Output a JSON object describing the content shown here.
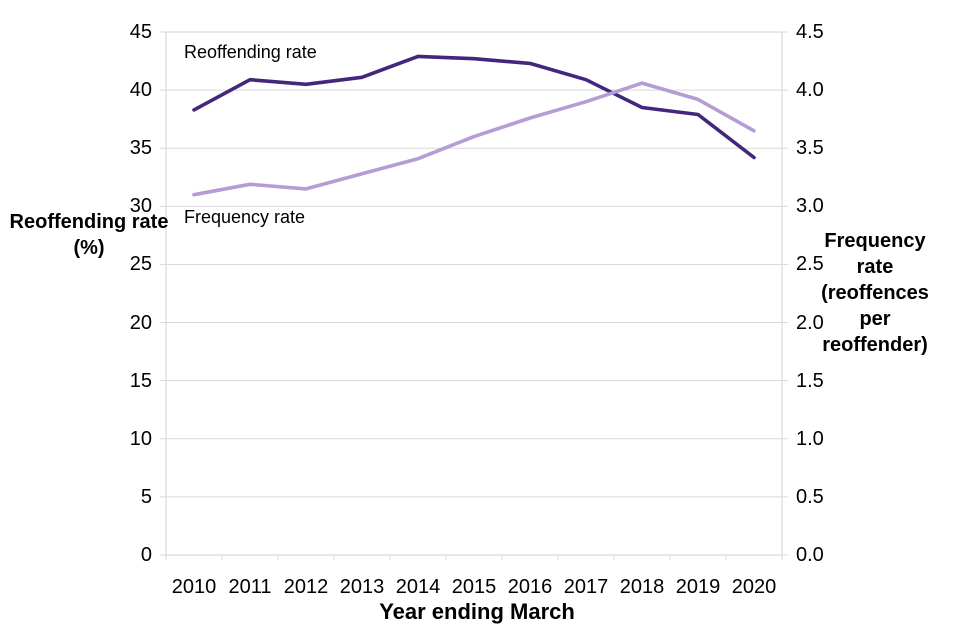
{
  "chart_data": {
    "type": "line",
    "title": "",
    "x_axis": {
      "title": "Year ending March",
      "categories": [
        "2010",
        "2011",
        "2012",
        "2013",
        "2014",
        "2015",
        "2016",
        "2017",
        "2018",
        "2019",
        "2020"
      ]
    },
    "left_axis": {
      "title": "Reoffending rate (%)",
      "min": 0,
      "max": 45,
      "tick_step": 5,
      "tick_labels": [
        "45",
        "40",
        "35",
        "30",
        "25",
        "20",
        "15",
        "10",
        "5",
        "0"
      ]
    },
    "right_axis": {
      "title": "Frequency rate (reoffences per reoffender)",
      "min": 0,
      "max": 4.5,
      "tick_step": 0.5,
      "tick_labels": [
        "4.5",
        "4.0",
        "3.5",
        "3.0",
        "2.5",
        "2.0",
        "1.5",
        "1.0",
        "0.5",
        "0.0"
      ]
    },
    "grid": "horizontal",
    "legend": "inline-labels",
    "series": [
      {
        "name": "Reoffending rate",
        "axis": "left",
        "color": "#44277d",
        "values": [
          38.3,
          40.9,
          40.5,
          41.1,
          42.9,
          42.7,
          42.3,
          40.9,
          38.5,
          37.9,
          34.2
        ]
      },
      {
        "name": "Frequency rate",
        "axis": "right",
        "color": "#b59cd4",
        "values": [
          3.1,
          3.19,
          3.15,
          3.28,
          3.41,
          3.6,
          3.76,
          3.9,
          4.06,
          3.92,
          3.65
        ]
      }
    ]
  },
  "colors": {
    "background": "#ffffff",
    "gridline": "#d9d9d9",
    "plot_border": "#d9d9d9",
    "text": "#000000"
  }
}
